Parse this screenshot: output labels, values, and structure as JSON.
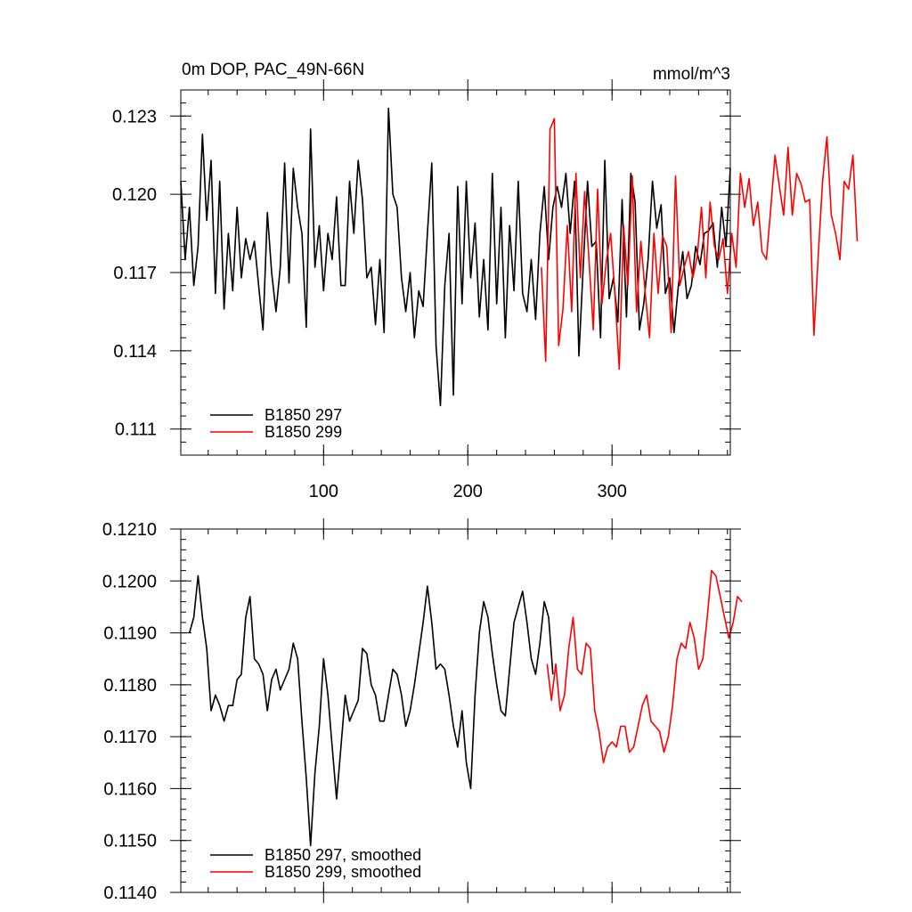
{
  "chart_data": [
    {
      "type": "line",
      "title": "0m DOP, PAC_49N-66N",
      "units": "mmol/m^3",
      "xlabel": "",
      "ylabel": "",
      "xlim": [
        1,
        382
      ],
      "ylim": [
        0.11,
        0.124
      ],
      "x_ticks": [
        100,
        200,
        300
      ],
      "x_tick_labels": [
        "100",
        "200",
        "300"
      ],
      "y_ticks": [
        0.111,
        0.114,
        0.117,
        0.12,
        0.123
      ],
      "y_tick_labels": [
        "0.111",
        "0.114",
        "0.117",
        "0.120",
        "0.123"
      ],
      "legend_position": "bottom-left",
      "series": [
        {
          "name": "B1850 297",
          "color": "#000000",
          "x_start": 1,
          "x_step": 3,
          "values": [
            0.1205,
            0.1175,
            0.1195,
            0.1165,
            0.118,
            0.1223,
            0.119,
            0.1213,
            0.1162,
            0.1205,
            0.1156,
            0.1185,
            0.1163,
            0.1195,
            0.1168,
            0.1183,
            0.1175,
            0.1182,
            0.1165,
            0.1148,
            0.1193,
            0.117,
            0.1155,
            0.1172,
            0.1212,
            0.1166,
            0.121,
            0.1195,
            0.1185,
            0.1149,
            0.1225,
            0.1172,
            0.1188,
            0.1163,
            0.1185,
            0.1175,
            0.1199,
            0.1165,
            0.1165,
            0.1205,
            0.1185,
            0.1213,
            0.1198,
            0.1168,
            0.1172,
            0.115,
            0.1175,
            0.1147,
            0.1233,
            0.12,
            0.1195,
            0.1168,
            0.1155,
            0.117,
            0.1145,
            0.1163,
            0.1157,
            0.1185,
            0.1212,
            0.1142,
            0.1119,
            0.1165,
            0.1185,
            0.1123,
            0.1203,
            0.1158,
            0.1205,
            0.1168,
            0.1189,
            0.1153,
            0.1175,
            0.1148,
            0.1208,
            0.1158,
            0.1195,
            0.1145,
            0.1188,
            0.1163,
            0.1205,
            0.1162,
            0.1155,
            0.1175,
            0.1152,
            0.1185,
            0.1203,
            0.1175,
            0.1195,
            0.1203,
            0.1195,
            0.1208,
            0.1185,
            0.1205,
            0.1138,
            0.1172,
            0.1205,
            0.118,
            0.1182,
            0.1145,
            0.1213,
            0.116,
            0.1168,
            0.1151,
            0.1198,
            0.1153,
            0.1208,
            0.1197,
            0.1148,
            0.1158,
            0.1175,
            0.1205,
            0.1187,
            0.1196,
            0.1162,
            0.1168,
            0.1147,
            0.1165,
            0.1178,
            0.116,
            0.1165,
            0.118,
            0.1173,
            0.1185,
            0.1186,
            0.1189,
            0.1172,
            0.1195,
            0.118,
            0.121
          ]
        },
        {
          "name": "B1850 299",
          "color": "#ff0000",
          "x_start": 251,
          "x_step": 3,
          "values": [
            0.1172,
            0.1136,
            0.1225,
            0.1229,
            0.1142,
            0.1156,
            0.1188,
            0.1155,
            0.1208,
            0.1168,
            0.1201,
            0.1175,
            0.1148,
            0.1202,
            0.1158,
            0.1174,
            0.1185,
            0.1162,
            0.1133,
            0.1188,
            0.1165,
            0.1207,
            0.1155,
            0.1182,
            0.1162,
            0.1145,
            0.1185,
            0.1162,
            0.1184,
            0.118,
            0.1147,
            0.1207,
            0.1165,
            0.1172,
            0.1178,
            0.1168,
            0.1176,
            0.1195,
            0.1168,
            0.1197,
            0.118,
            0.1175,
            0.1183,
            0.1162,
            0.1185,
            0.1172,
            0.1208,
            0.1195,
            0.1206,
            0.1188,
            0.1197,
            0.1178,
            0.1175,
            0.1194,
            0.1215,
            0.1203,
            0.1192,
            0.1218,
            0.1192,
            0.1208,
            0.1204,
            0.1197,
            0.1198,
            0.1146,
            0.1177,
            0.1205,
            0.1222,
            0.1192,
            0.1185,
            0.1175,
            0.1205,
            0.1202,
            0.1215,
            0.1182
          ]
        }
      ]
    },
    {
      "type": "line",
      "title": "",
      "xlabel": "",
      "ylabel": "",
      "xlim": [
        1,
        382
      ],
      "ylim": [
        0.114,
        0.121
      ],
      "x_ticks": [
        100,
        200,
        300
      ],
      "x_tick_labels": [],
      "y_ticks": [
        0.114,
        0.115,
        0.116,
        0.117,
        0.118,
        0.119,
        0.12,
        0.121
      ],
      "y_tick_labels": [
        "0.1140",
        "0.1150",
        "0.1160",
        "0.1170",
        "0.1180",
        "0.1190",
        "0.1200",
        "0.1210"
      ],
      "legend_position": "bottom-left",
      "series": [
        {
          "name": "B1850 297, smoothed",
          "color": "#000000",
          "x_start": 7,
          "x_step": 3,
          "values": [
            0.119,
            0.1193,
            0.1201,
            0.1193,
            0.1187,
            0.1175,
            0.1178,
            0.1176,
            0.1173,
            0.1176,
            0.1176,
            0.1181,
            0.1182,
            0.1193,
            0.1197,
            0.1185,
            0.1184,
            0.1182,
            0.1175,
            0.1181,
            0.1183,
            0.1179,
            0.1181,
            0.1183,
            0.1188,
            0.1185,
            0.1173,
            0.1162,
            0.1149,
            0.1163,
            0.1172,
            0.1185,
            0.1178,
            0.1168,
            0.1158,
            0.1168,
            0.1178,
            0.1173,
            0.1175,
            0.1177,
            0.1187,
            0.1186,
            0.118,
            0.1178,
            0.1173,
            0.1173,
            0.1178,
            0.1183,
            0.1182,
            0.1178,
            0.1172,
            0.1175,
            0.118,
            0.1186,
            0.1192,
            0.1199,
            0.1192,
            0.1183,
            0.1184,
            0.1183,
            0.1178,
            0.1172,
            0.1168,
            0.1175,
            0.1165,
            0.116,
            0.1178,
            0.119,
            0.1196,
            0.1193,
            0.1186,
            0.118,
            0.1175,
            0.1174,
            0.1183,
            0.1192,
            0.1195,
            0.1198,
            0.1192,
            0.1185,
            0.1182,
            0.1188,
            0.1196,
            0.1193,
            0.1182
          ]
        },
        {
          "name": "B1850 299, smoothed",
          "color": "#ff0000",
          "x_start": 255,
          "x_step": 3,
          "values": [
            0.1184,
            0.1177,
            0.1184,
            0.1175,
            0.1178,
            0.1187,
            0.1193,
            0.1183,
            0.1182,
            0.1188,
            0.1187,
            0.1175,
            0.1171,
            0.1165,
            0.1168,
            0.1169,
            0.1168,
            0.1172,
            0.1172,
            0.1167,
            0.1168,
            0.1172,
            0.1176,
            0.1178,
            0.1173,
            0.1172,
            0.1171,
            0.1167,
            0.117,
            0.1176,
            0.1185,
            0.1188,
            0.1187,
            0.1192,
            0.1189,
            0.1183,
            0.1185,
            0.1193,
            0.1202,
            0.1201,
            0.1197,
            0.1193,
            0.1189,
            0.1192,
            0.1197,
            0.1196
          ]
        }
      ]
    }
  ]
}
